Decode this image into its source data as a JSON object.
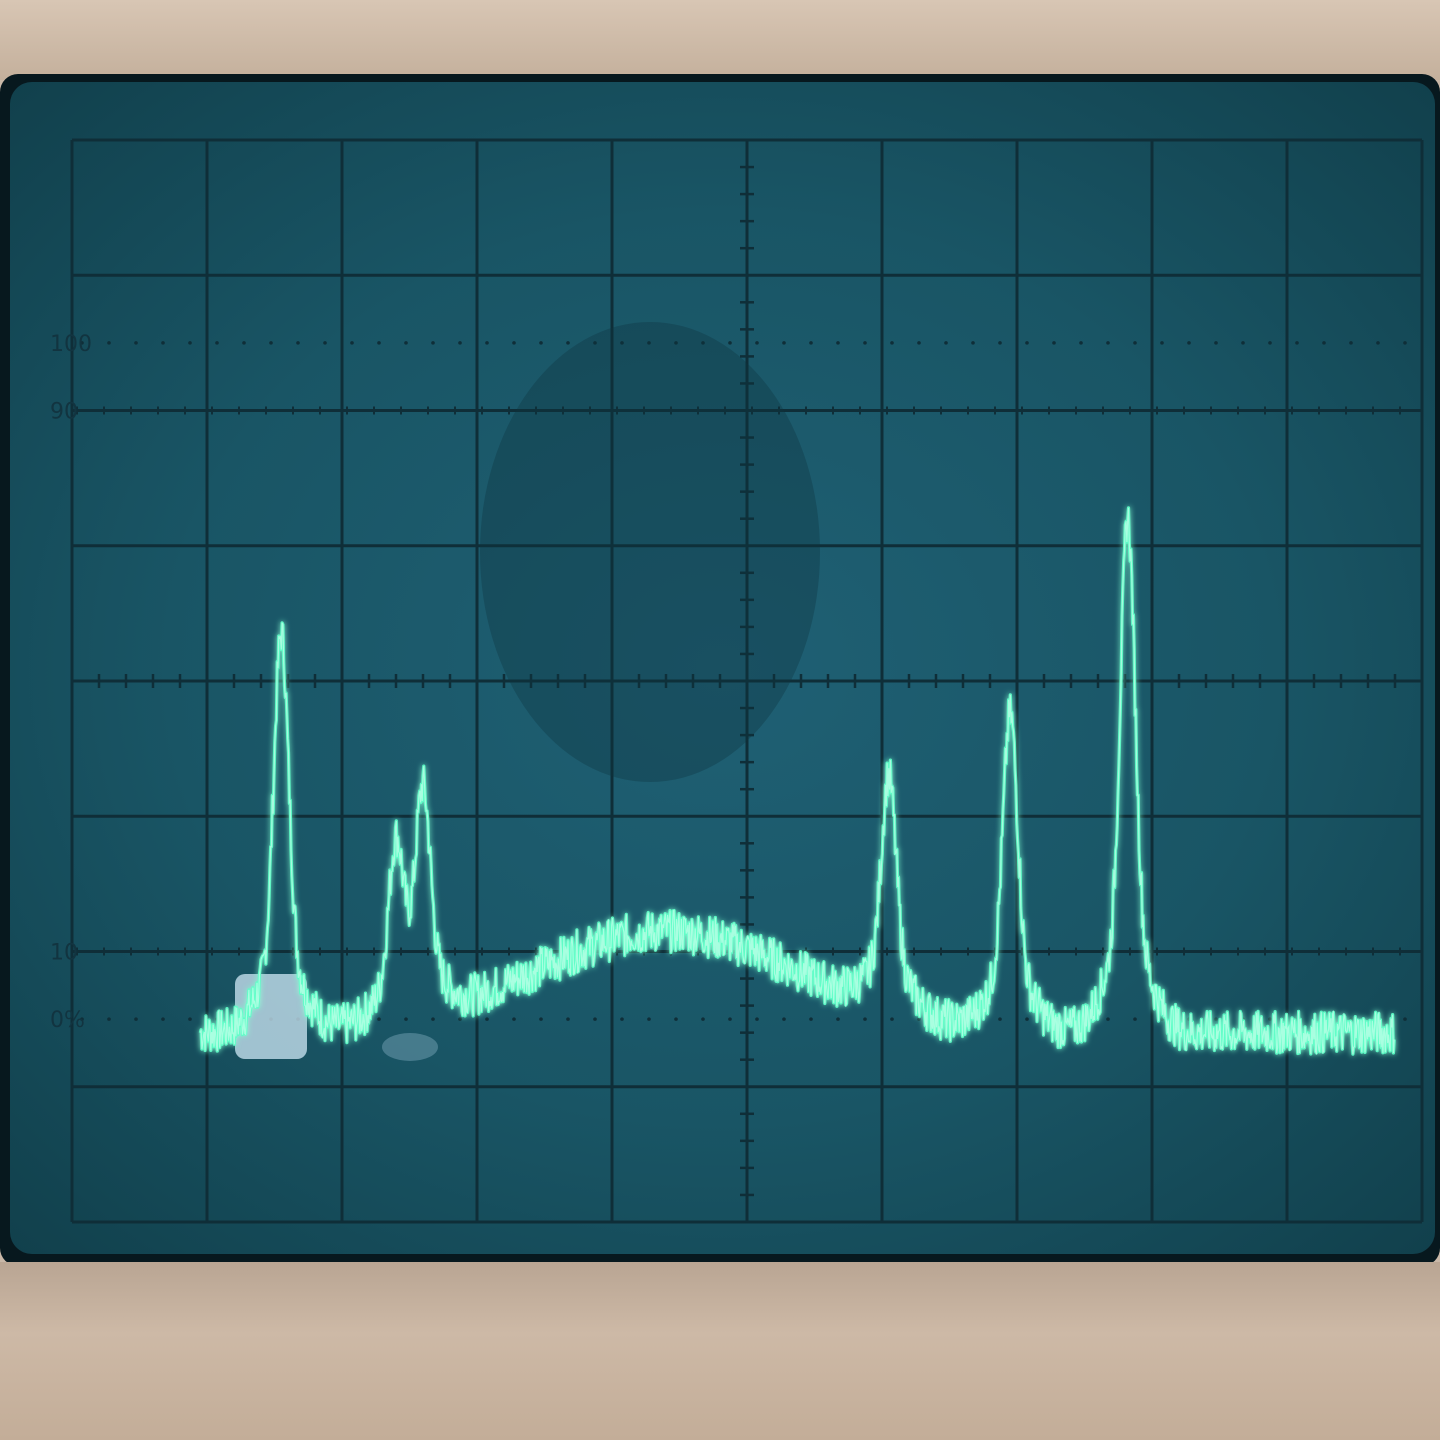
{
  "scope": {
    "graticule": {
      "cols": 10,
      "rows": 8,
      "minor_ticks_per_div": 5
    },
    "scale_marks": [
      "100",
      "90",
      "10",
      "0%"
    ],
    "trace_color": "#5dffc8",
    "grid_color": "#0f2e38",
    "baseline_level_div": 1.55,
    "peaks": [
      {
        "x_div": 1.55,
        "height_div": 2.4
      },
      {
        "x_div": 2.4,
        "height_div": 1.0
      },
      {
        "x_div": 2.6,
        "height_div": 1.3
      },
      {
        "x_div": 6.05,
        "height_div": 1.4
      },
      {
        "x_div": 6.95,
        "height_div": 1.9
      },
      {
        "x_div": 7.82,
        "height_div": 3.1
      }
    ]
  }
}
